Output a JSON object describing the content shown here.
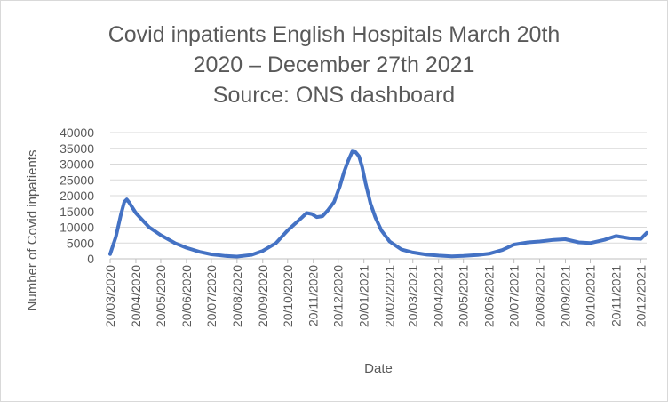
{
  "chart_data": {
    "type": "line",
    "title_lines": [
      "Covid inpatients English Hospitals March 20th",
      "2020 – December 27th 2021",
      "Source: ONS dashboard"
    ],
    "xlabel": "Date",
    "ylabel": "Number of Covid inpatients",
    "ylim": [
      0,
      40000
    ],
    "y_ticks": [
      0,
      5000,
      10000,
      15000,
      20000,
      25000,
      30000,
      35000,
      40000
    ],
    "x_tick_labels": [
      "20/03/2020",
      "20/04/2020",
      "20/05/2020",
      "20/06/2020",
      "20/07/2020",
      "20/08/2020",
      "20/09/2020",
      "20/10/2020",
      "20/11/2020",
      "20/12/2020",
      "20/01/2021",
      "20/02/2021",
      "20/03/2021",
      "20/04/2021",
      "20/05/2021",
      "20/06/2021",
      "20/07/2021",
      "20/08/2021",
      "20/09/2021",
      "20/10/2021",
      "20/11/2021",
      "20/12/2021"
    ],
    "grid": "horizontal",
    "legend": "none",
    "line_color": "#4472C4",
    "series": [
      {
        "x": [
          "2020-03-20",
          "2020-03-27",
          "2020-04-02",
          "2020-04-06",
          "2020-04-09",
          "2020-04-12",
          "2020-04-20",
          "2020-04-27",
          "2020-05-06",
          "2020-05-20",
          "2020-06-06",
          "2020-06-20",
          "2020-07-06",
          "2020-07-20",
          "2020-08-06",
          "2020-08-20",
          "2020-09-06",
          "2020-09-20",
          "2020-10-06",
          "2020-10-20",
          "2020-11-06",
          "2020-11-12",
          "2020-11-18",
          "2020-11-24",
          "2020-12-01",
          "2020-12-08",
          "2020-12-15",
          "2020-12-22",
          "2020-12-27",
          "2021-01-01",
          "2021-01-06",
          "2021-01-10",
          "2021-01-14",
          "2021-01-18",
          "2021-01-22",
          "2021-01-28",
          "2021-02-03",
          "2021-02-10",
          "2021-02-20",
          "2021-03-06",
          "2021-03-20",
          "2021-04-06",
          "2021-04-20",
          "2021-05-06",
          "2021-05-20",
          "2021-06-06",
          "2021-06-20",
          "2021-07-06",
          "2021-07-20",
          "2021-08-06",
          "2021-08-20",
          "2021-09-06",
          "2021-09-20",
          "2021-10-06",
          "2021-10-20",
          "2021-11-06",
          "2021-11-20",
          "2021-12-06",
          "2021-12-20",
          "2021-12-27"
        ],
        "y": [
          1500,
          7000,
          14000,
          18000,
          18800,
          17800,
          14500,
          12500,
          10000,
          7500,
          5000,
          3500,
          2200,
          1400,
          900,
          700,
          1200,
          2500,
          5000,
          9000,
          13000,
          14500,
          14200,
          13200,
          13500,
          15500,
          18000,
          23000,
          27500,
          31000,
          34000,
          33800,
          32500,
          29000,
          24000,
          17500,
          13000,
          9000,
          5500,
          3000,
          2000,
          1300,
          1000,
          800,
          900,
          1200,
          1600,
          2800,
          4500,
          5200,
          5500,
          6000,
          6200,
          5200,
          5000,
          6000,
          7200,
          6500,
          6300,
          8200
        ]
      }
    ]
  }
}
